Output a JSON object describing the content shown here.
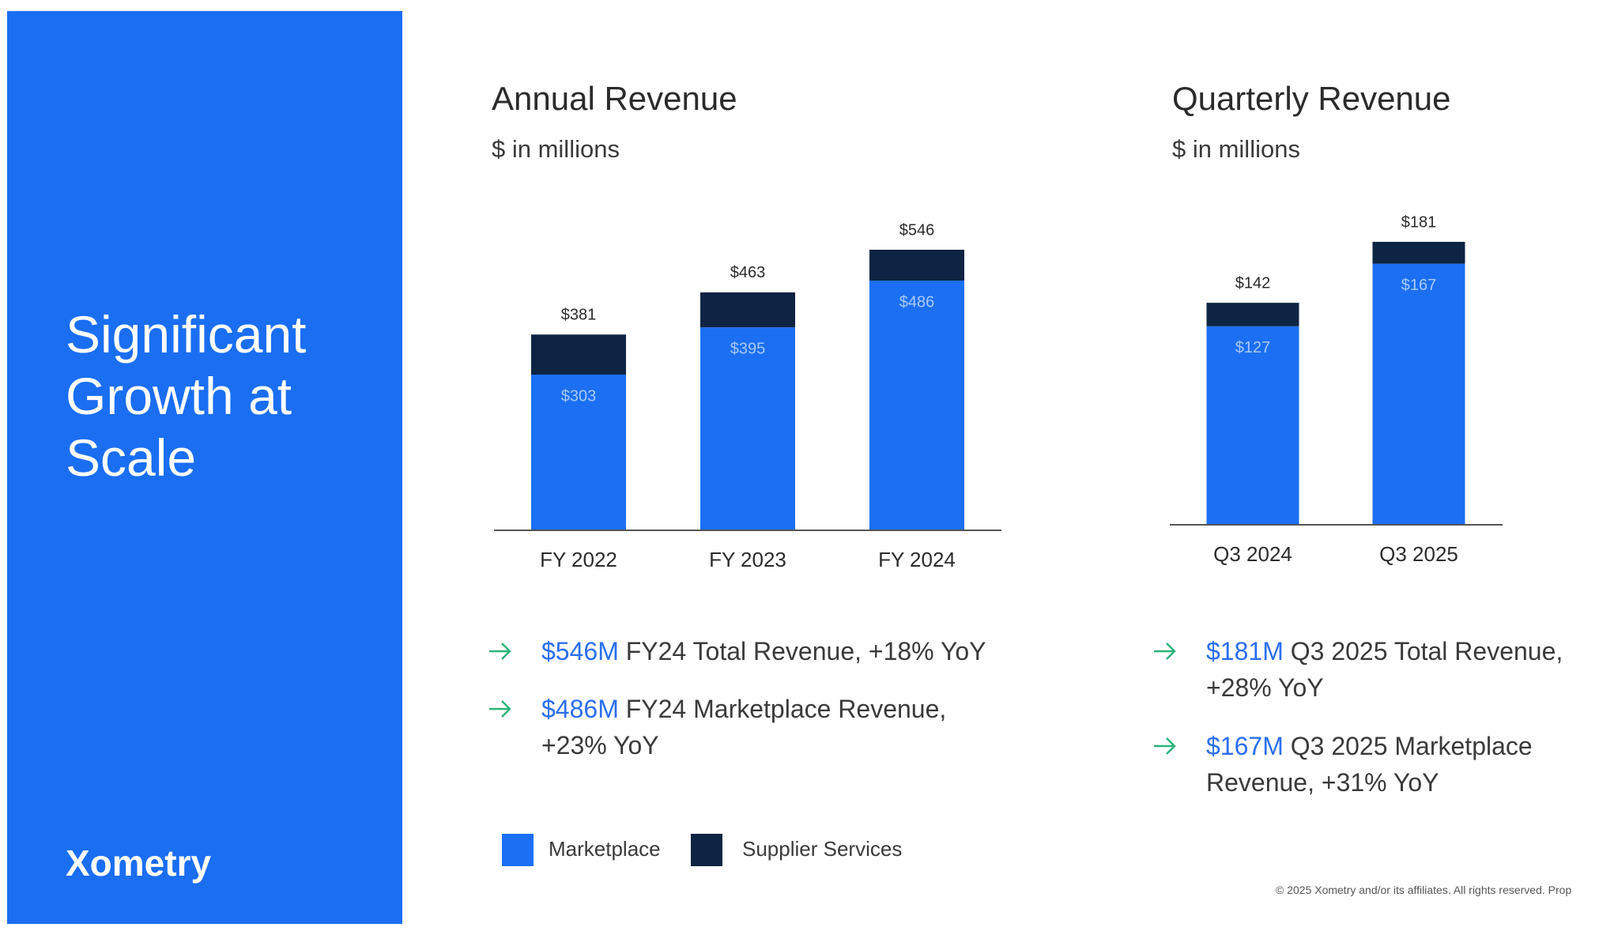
{
  "sidebar": {
    "title": "Significant Growth at Scale",
    "logo": "Xometry"
  },
  "chart_data": [
    {
      "type": "stacked_bar",
      "title": "Annual Revenue",
      "subtitle": "$ in millions",
      "categories": [
        "FY 2022",
        "FY 2023",
        "FY 2024"
      ],
      "series": [
        {
          "name": "Marketplace",
          "color": "#1b6ff2",
          "values": [
            303,
            395,
            486
          ],
          "value_labels": [
            "$303",
            "$395",
            "$486"
          ]
        },
        {
          "name": "Supplier Services",
          "color": "#0e2443",
          "values": [
            78,
            68,
            60
          ]
        }
      ],
      "totals": [
        381,
        463,
        546
      ],
      "total_labels": [
        "$381",
        "$463",
        "$546"
      ],
      "bullets": [
        {
          "highlight": "$546M",
          "text": "FY24 Total Revenue, +18% YoY"
        },
        {
          "highlight": "$486M",
          "text": "FY24 Marketplace Revenue, +23% YoY"
        }
      ]
    },
    {
      "type": "stacked_bar",
      "title": "Quarterly Revenue",
      "subtitle": "$ in millions",
      "categories": [
        "Q3 2024",
        "Q3 2025"
      ],
      "series": [
        {
          "color": "#1b6ff2",
          "values": [
            127,
            167
          ],
          "value_labels": [
            "$127",
            "$167"
          ]
        },
        {
          "color": "#0e2443",
          "values": [
            15,
            14
          ]
        }
      ],
      "totals": [
        142,
        181
      ],
      "total_labels": [
        "$142",
        "$181"
      ],
      "bullets": [
        {
          "highlight": "$181M",
          "text": "Q3 2025 Total Revenue, +28% YoY"
        },
        {
          "highlight": "$167M",
          "text": "Q3 2025 Marketplace Revenue, +31% YoY"
        }
      ]
    }
  ],
  "footer": "© 2025 Xometry and/or its affiliates. All rights reserved. Prop"
}
